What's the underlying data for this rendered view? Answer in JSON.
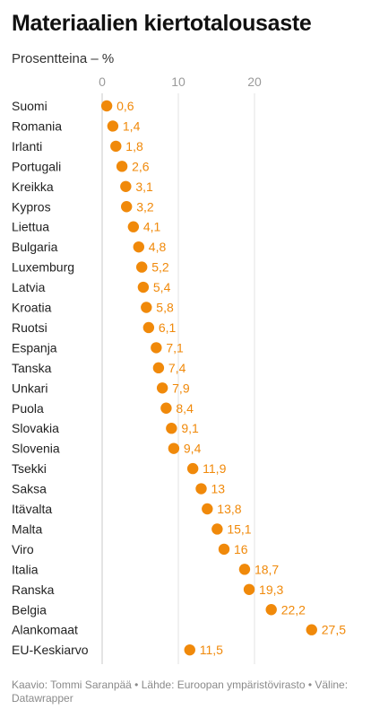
{
  "title": "Materiaalien kiertotalousaste",
  "subtitle": "Prosentteina – %",
  "footer": "Kaavio: Tommi Saranpää • Lähde: Euroopan ympäristövirasto • Väline: Datawrapper",
  "colors": {
    "dot": "#f0890a",
    "label": "#f0890a",
    "grid": "#e3e3e3",
    "zero_line": "#c8c8c8",
    "tick": "#9a9a9a"
  },
  "chart_data": {
    "type": "scatter",
    "orientation": "horizontal dot plot",
    "title": "Materiaalien kiertotalousaste",
    "subtitle": "Prosentteina – %",
    "xlabel": "",
    "ylabel": "",
    "xlim": [
      0,
      30
    ],
    "xticks": [
      0,
      10,
      20
    ],
    "grid": true,
    "categories": [
      "Suomi",
      "Romania",
      "Irlanti",
      "Portugali",
      "Kreikka",
      "Kypros",
      "Liettua",
      "Bulgaria",
      "Luxemburg",
      "Latvia",
      "Kroatia",
      "Ruotsi",
      "Espanja",
      "Tanska",
      "Unkari",
      "Puola",
      "Slovakia",
      "Slovenia",
      "Tsekki",
      "Saksa",
      "Itävalta",
      "Malta",
      "Viro",
      "Italia",
      "Ranska",
      "Belgia",
      "Alankomaat",
      "EU-Keskiarvo"
    ],
    "values": [
      0.6,
      1.4,
      1.8,
      2.6,
      3.1,
      3.2,
      4.1,
      4.8,
      5.2,
      5.4,
      5.8,
      6.1,
      7.1,
      7.4,
      7.9,
      8.4,
      9.1,
      9.4,
      11.9,
      13,
      13.8,
      15.1,
      16,
      18.7,
      19.3,
      22.2,
      27.5,
      11.5
    ],
    "value_labels": [
      "0,6",
      "1,4",
      "1,8",
      "2,6",
      "3,1",
      "3,2",
      "4,1",
      "4,8",
      "5,2",
      "5,4",
      "5,8",
      "6,1",
      "7,1",
      "7,4",
      "7,9",
      "8,4",
      "9,1",
      "9,4",
      "11,9",
      "13",
      "13,8",
      "15,1",
      "16",
      "18,7",
      "19,3",
      "22,2",
      "27,5",
      "11,5"
    ]
  }
}
